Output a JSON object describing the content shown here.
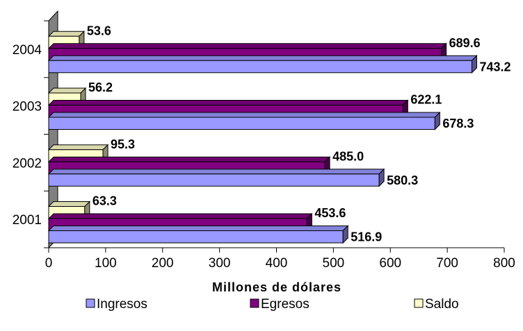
{
  "chart_data": {
    "type": "bar",
    "orientation": "horizontal",
    "style": "3d",
    "categories": [
      "2001",
      "2002",
      "2003",
      "2004"
    ],
    "series": [
      {
        "name": "Ingresos",
        "values": [
          516.9,
          580.3,
          678.3,
          743.2
        ],
        "labels": [
          "516.9",
          "580.3",
          "678.3",
          "743.2"
        ]
      },
      {
        "name": "Egresos",
        "values": [
          453.6,
          485.0,
          622.1,
          689.6
        ],
        "labels": [
          "453.6",
          "485.0",
          "622.1",
          "689.6"
        ]
      },
      {
        "name": "Saldo",
        "values": [
          63.3,
          95.3,
          56.2,
          53.6
        ],
        "labels": [
          "63.3",
          "95.3",
          "56.2",
          "53.6"
        ]
      }
    ],
    "xlabel": "Millones de dólares",
    "ylabel": "",
    "xlim": [
      0,
      800
    ],
    "xticks": [
      "0",
      "100",
      "200",
      "300",
      "400",
      "500",
      "600",
      "700",
      "800"
    ],
    "grid": false,
    "legend_position": "bottom",
    "colors": {
      "Ingresos": "#9999ff",
      "Egresos": "#800080",
      "Saldo": "#ffffcc"
    }
  }
}
